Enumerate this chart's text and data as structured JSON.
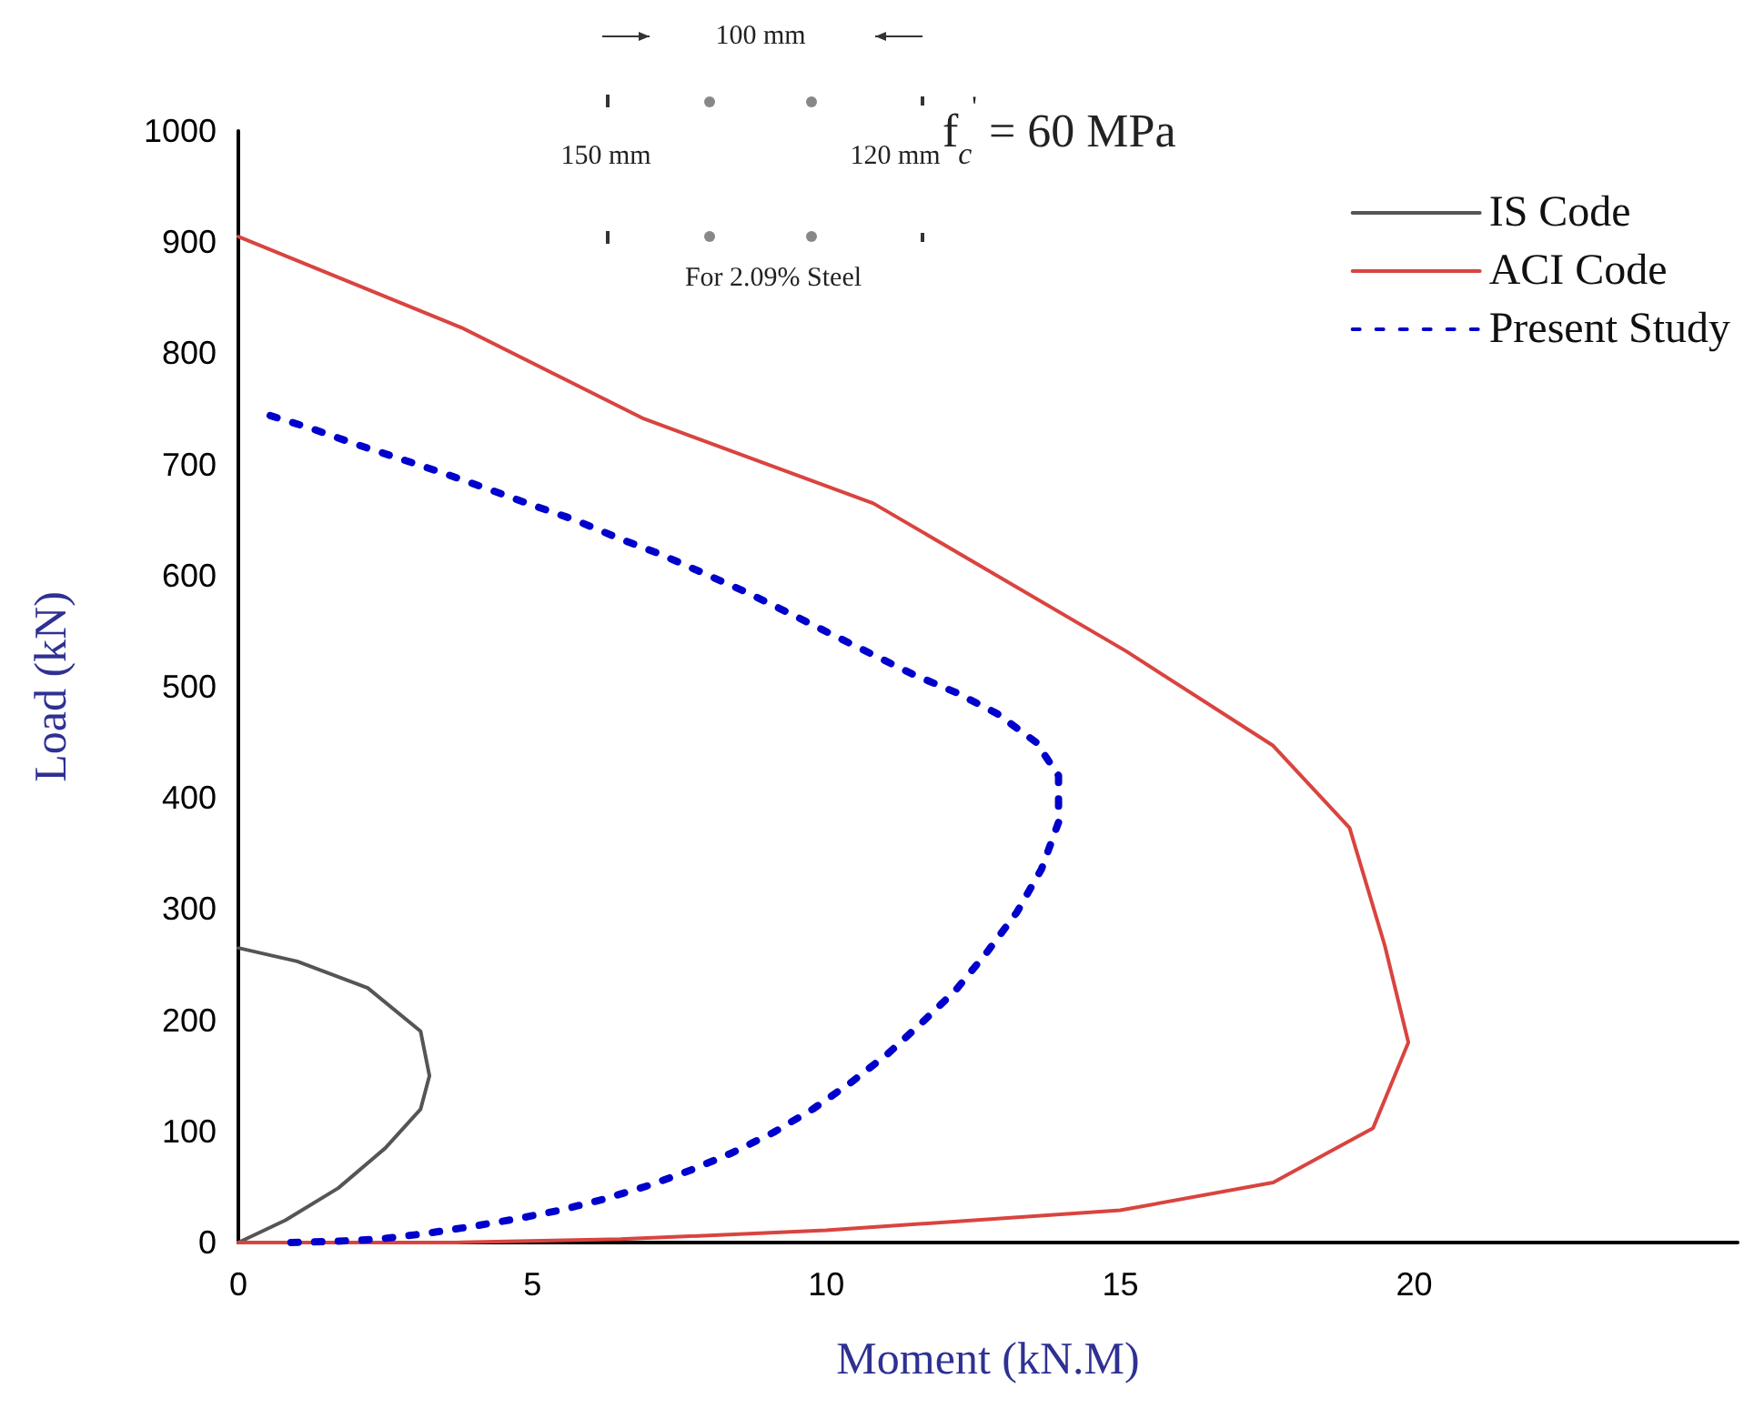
{
  "chart_data": {
    "type": "line",
    "xlabel": "Moment (kN.M)",
    "ylabel": "Load (kN)",
    "xlim": [
      0,
      25.5
    ],
    "xticks": [
      0,
      5,
      10,
      15,
      20
    ],
    "ylim": [
      0,
      1000
    ],
    "yticks": [
      0,
      100,
      200,
      300,
      400,
      500,
      600,
      700,
      800,
      900,
      1000
    ],
    "grid": false,
    "legend": "top right",
    "marker": "none",
    "annotations": [
      "100 mm",
      "150 mm",
      "120 mm",
      "For 2.09% Steel",
      "f$_{c}$$^{'}$ = 60 MPa"
    ],
    "series": [
      {
        "name": "IS Code",
        "color": "#555555",
        "line_style": "solid",
        "x": [
          0,
          0.8,
          1.7,
          2.5,
          3.1,
          3.25,
          3.1,
          2.2,
          1.0,
          0
        ],
        "values": [
          0,
          20,
          49,
          85,
          120,
          150,
          190,
          229,
          253,
          265
        ]
      },
      {
        "name": "ACI Code",
        "color": "#d9443f",
        "line_style": "solid",
        "x": [
          0,
          3.8,
          6.9,
          10.8,
          15.1,
          17.6,
          18.9,
          19.5,
          19.9,
          19.3,
          17.6,
          15,
          10,
          6.5,
          3.7,
          0
        ],
        "values": [
          905,
          823,
          741,
          665,
          532,
          447,
          373,
          267,
          180,
          103,
          54,
          29,
          11,
          3,
          0,
          0
        ]
      },
      {
        "name": "Present Study",
        "color": "#0000cc",
        "line_style": "dotted",
        "x": [
          0.54,
          1.26,
          2.01,
          2.76,
          3.5,
          4.24,
          4.97,
          5.73,
          6.45,
          7.19,
          7.92,
          8.64,
          9.34,
          10.06,
          10.75,
          11.48,
          12.2,
          12.9,
          13.57,
          13.95,
          13.95,
          13.66,
          13.24,
          12.73,
          12.2,
          11.63,
          11.05,
          10.42,
          9.77,
          9.1,
          8.41,
          7.69,
          6.96,
          6.21,
          5.47,
          4.7,
          3.92,
          3.17,
          2.38,
          1.62,
          0.85
        ],
        "values": [
          744,
          732,
          718,
          705,
          692,
          678,
          664,
          650,
          634,
          619,
          602,
          585,
          567,
          548,
          530,
          511,
          495,
          476,
          450,
          420,
          378,
          336,
          297,
          261,
          227,
          198,
          170,
          144,
          120,
          99,
          81,
          65,
          51,
          39,
          29,
          21,
          14,
          8,
          3,
          1,
          0
        ]
      }
    ]
  }
}
